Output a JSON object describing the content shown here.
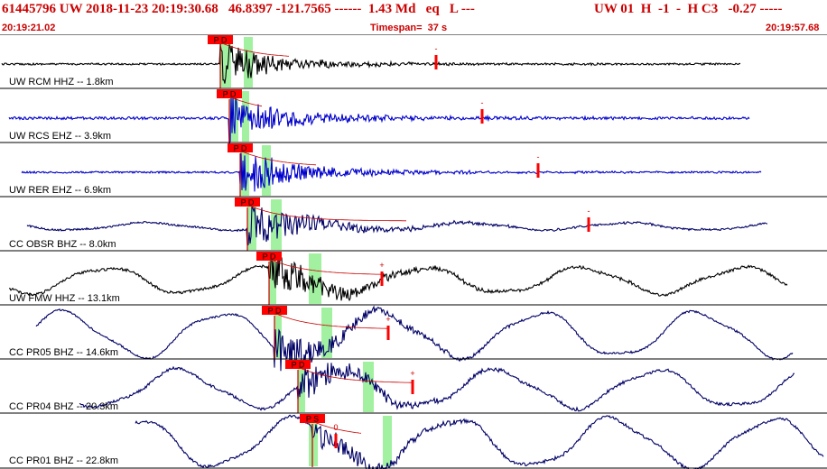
{
  "header": {
    "event_info": "61445796 UW 2018-11-23 20:19:30.68   46.8397 -121.7565 ------  1.43 Md   eq   L ---",
    "station_info": "UW 01  H  -1  -  H C3   -0.27 -----",
    "start_time": "20:19:21.02",
    "timespan": "Timespan=  37 s",
    "end_time": "20:19:57.68"
  },
  "colors": {
    "header_text": "#cc0000",
    "pick_box": "#ff0000",
    "phase_window": "#90ee90",
    "decay_curve": "#cc0000"
  },
  "traces": [
    {
      "label": "UW RCM HHZ --  1.8km",
      "color": "#000000",
      "pick_label": "P D",
      "coda_mark": "-"
    },
    {
      "label": "UW RCS EHZ --  3.9km",
      "color": "#0000cc",
      "pick_label": "P D",
      "coda_mark": "-"
    },
    {
      "label": "UW RER EHZ --  6.9km",
      "color": "#0000cc",
      "pick_label": "P D",
      "coda_mark": "-"
    },
    {
      "label": "CC OBSR BHZ --  8.0km",
      "color": "#000066",
      "pick_label": "P D",
      "coda_mark": "-"
    },
    {
      "label": "UW FMW HHZ --  13.1km",
      "color": "#000000",
      "pick_label": "P D",
      "coda_mark": "+"
    },
    {
      "label": "CC PR05 BHZ --  14.6km",
      "color": "#000066",
      "pick_label": "P D",
      "coda_mark": "+"
    },
    {
      "label": "CC PR04 BHZ --  20.3km",
      "color": "#000066",
      "pick_label": "P D",
      "coda_mark": "+"
    },
    {
      "label": "CC PR01 BHZ --  22.8km",
      "color": "#000066",
      "pick_label": "P S",
      "coda_mark": "0"
    }
  ]
}
